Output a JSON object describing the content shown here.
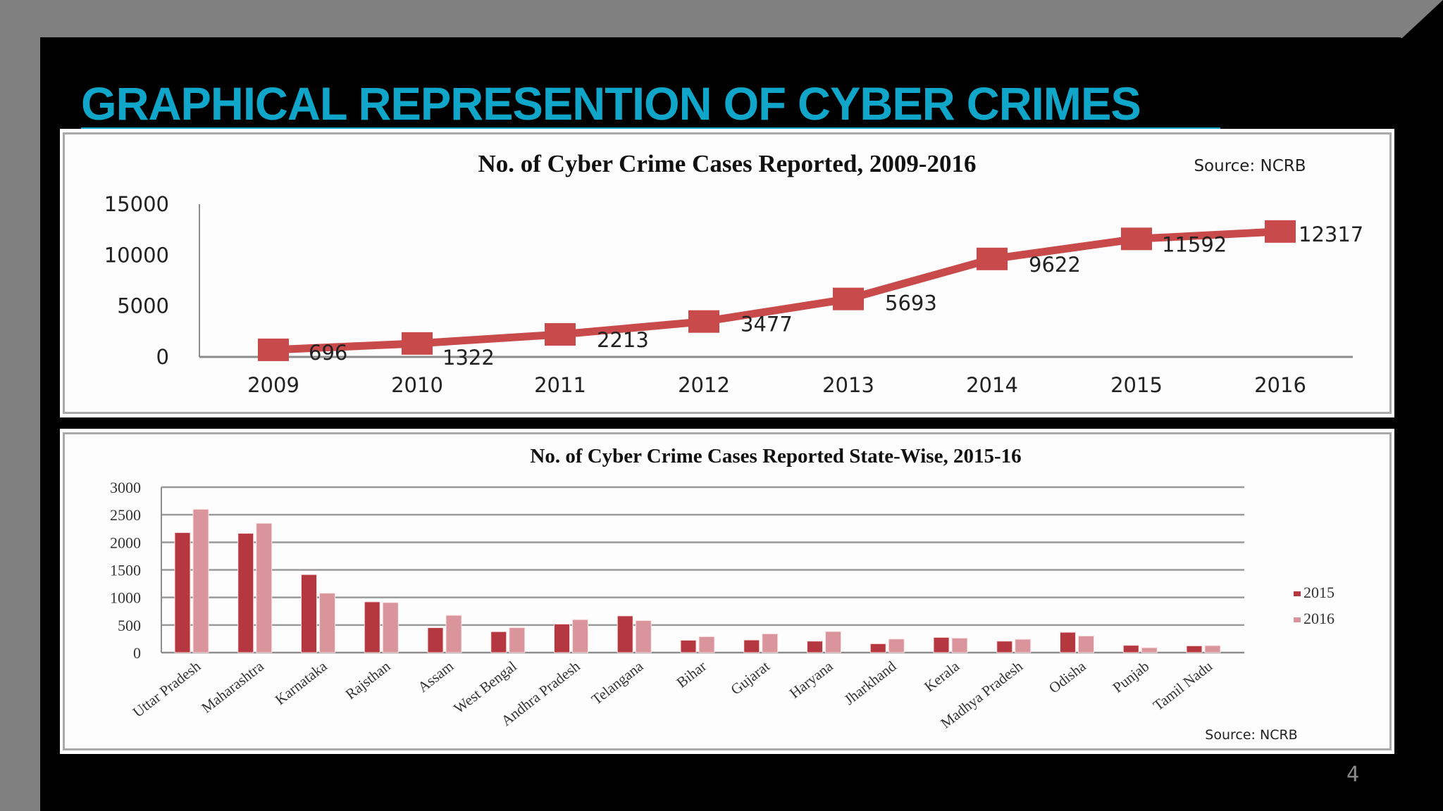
{
  "slide": {
    "title": "GRAPHICAL REPRESENTION OF CYBER CRIMES",
    "page_number": "4",
    "colors": {
      "frame_gray": "#808080",
      "slide_bg": "#000000",
      "title": "#0fa6c9"
    }
  },
  "chart_data": [
    {
      "type": "line",
      "title": "No. of Cyber Crime Cases Reported,  2009-2016",
      "source": "Source: NCRB",
      "xlabel": "",
      "ylabel": "",
      "x": [
        "2009",
        "2010",
        "2011",
        "2012",
        "2013",
        "2014",
        "2015",
        "2016"
      ],
      "series": [
        {
          "name": "Cyber Crime Cases",
          "values": [
            696,
            1322,
            2213,
            3477,
            5693,
            9622,
            11592,
            12317
          ],
          "color": "#c94a4a"
        }
      ],
      "data_labels": [
        "696",
        "1322",
        "2213",
        "3477",
        "5693",
        "9622",
        "11592",
        "12317"
      ],
      "yticks": [
        0,
        5000,
        10000,
        15000
      ],
      "ylim": [
        0,
        15000
      ],
      "grid": false,
      "legend": false
    },
    {
      "type": "bar",
      "title": "No. of Cyber Crime Cases Reported  State-Wise, 2015-16",
      "source": "Source: NCRB",
      "xlabel": "",
      "ylabel": "",
      "categories": [
        "Uttar Pradesh",
        "Maharashtra",
        "Karnataka",
        "Rajsthan",
        "Assam",
        "West Bengal",
        "Andhra Pradesh",
        "Telangana",
        "Bihar",
        "Gujarat",
        "Haryana",
        "Jharkhand",
        "Kerala",
        "Madhya Pradesh",
        "Odisha",
        "Punjab",
        "Tamil Nadu"
      ],
      "series": [
        {
          "name": "2015",
          "color": "#b5373f",
          "values": [
            2176,
            2163,
            1415,
            921,
            452,
            380,
            518,
            666,
            225,
            229,
            208,
            161,
            276,
            208,
            369,
            132,
            123
          ]
        },
        {
          "name": "2016",
          "color": "#d9959b",
          "values": [
            2599,
            2345,
            1077,
            908,
            676,
            452,
            598,
            581,
            289,
            340,
            382,
            246,
            263,
            242,
            301,
            89,
            127
          ]
        }
      ],
      "yticks": [
        0,
        500,
        1000,
        1500,
        2000,
        2500,
        3000
      ],
      "ylim": [
        0,
        3000
      ],
      "grid": true,
      "legend_position": "right"
    }
  ]
}
